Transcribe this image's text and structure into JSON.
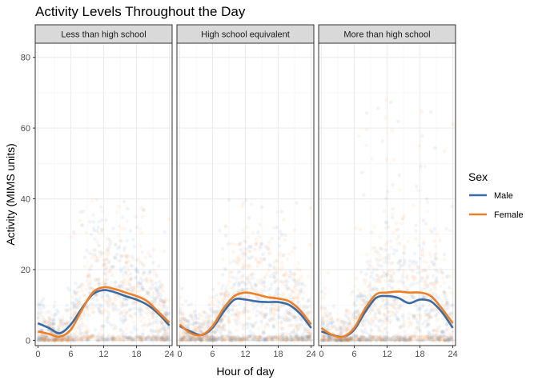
{
  "chart_data": {
    "type": "scatter",
    "title": "Activity Levels Throughout the Day",
    "xlabel": "Hour of day",
    "ylabel": "Activity (MIMS units)",
    "xlim": [
      -0.5,
      24.5
    ],
    "ylim": [
      -1.5,
      84
    ],
    "x_ticks": [
      0,
      6,
      12,
      18,
      24
    ],
    "y_ticks": [
      0,
      20,
      40,
      60,
      80
    ],
    "grid": true,
    "legend": {
      "title": "Sex",
      "placement": "right",
      "entries": [
        {
          "name": "Male",
          "color": "#3a6ba5"
        },
        {
          "name": "Female",
          "color": "#f07f23"
        }
      ]
    },
    "colors": {
      "male": "#3a6ba5",
      "female": "#f07f23"
    },
    "smooth_x": [
      0,
      2,
      4,
      6,
      8,
      10,
      12,
      14,
      16,
      18,
      20,
      22,
      24
    ],
    "facets": [
      {
        "label": "Less than high school",
        "series": [
          {
            "name": "Male",
            "smooth_y": [
              4.8,
              3.5,
              2.0,
              4.5,
              9.0,
              13.0,
              14.2,
              13.6,
              12.5,
              11.5,
              10.0,
              7.5,
              4.2
            ]
          },
          {
            "name": "Female",
            "smooth_y": [
              2.5,
              1.8,
              1.0,
              3.0,
              8.5,
              13.5,
              15.0,
              14.5,
              13.5,
              12.5,
              11.0,
              8.0,
              5.0
            ]
          }
        ]
      },
      {
        "label": "High school equivalent",
        "series": [
          {
            "name": "Male",
            "smooth_y": [
              4.0,
              2.5,
              1.5,
              3.5,
              8.0,
              11.5,
              11.5,
              11.0,
              10.8,
              10.8,
              10.0,
              7.5,
              3.5
            ]
          },
          {
            "name": "Female",
            "smooth_y": [
              4.5,
              2.0,
              1.5,
              4.0,
              9.0,
              12.5,
              13.5,
              13.0,
              12.2,
              11.8,
              11.0,
              8.5,
              4.5
            ]
          }
        ]
      },
      {
        "label": "More than high school",
        "series": [
          {
            "name": "Male",
            "smooth_y": [
              2.5,
              1.5,
              1.0,
              3.0,
              8.0,
              12.0,
              12.5,
              12.0,
              10.5,
              11.5,
              11.0,
              8.0,
              3.5
            ]
          },
          {
            "name": "Female",
            "smooth_y": [
              3.5,
              1.5,
              1.0,
              3.5,
              9.0,
              13.0,
              13.5,
              13.8,
              13.5,
              13.5,
              12.5,
              9.0,
              4.8
            ]
          }
        ]
      }
    ]
  }
}
